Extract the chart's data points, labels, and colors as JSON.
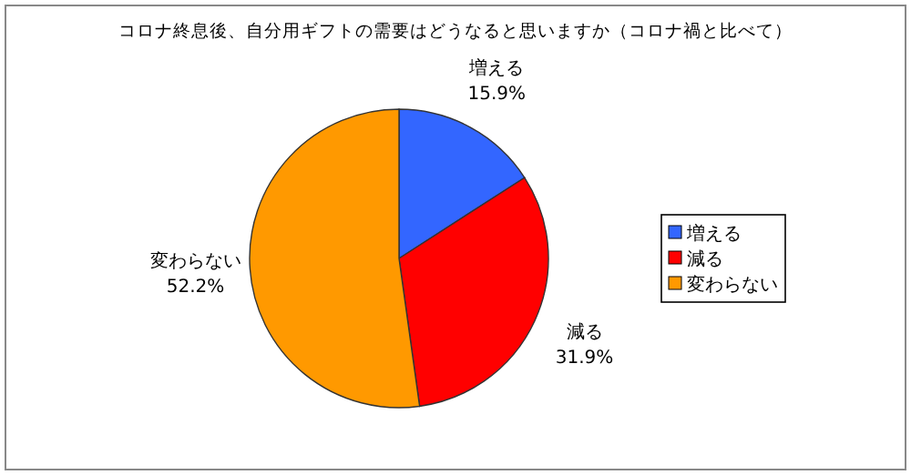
{
  "chart_data": {
    "type": "pie",
    "title": "コロナ終息後、自分用ギフトの需要はどうなると思いますか（コロナ禍と比べて）",
    "categories": [
      "増える",
      "減る",
      "変わらない"
    ],
    "values": [
      15.9,
      31.9,
      52.2
    ],
    "value_labels": [
      "15.9%",
      "31.9%",
      "52.2%"
    ],
    "colors": [
      "#3366ff",
      "#ff0000",
      "#ff9900"
    ],
    "legend": "right"
  }
}
